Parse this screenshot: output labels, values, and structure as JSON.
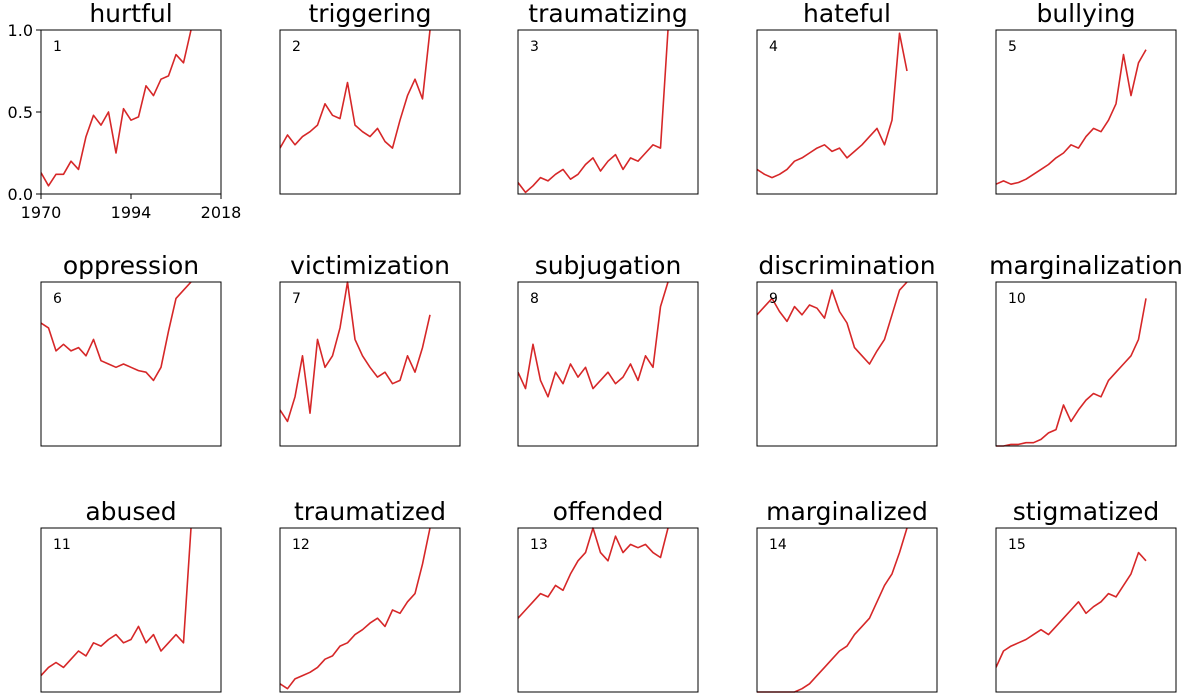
{
  "x_tick_labels": [
    "1970",
    "1994",
    "2018"
  ],
  "y_tick_labels": [
    "0.0",
    "0.5",
    "1.0"
  ],
  "line_color": "#d62728",
  "chart_data": {
    "type": "line",
    "xlabel": "",
    "ylabel": "",
    "xlim": [
      1970,
      2018
    ],
    "ylim": [
      0,
      1
    ],
    "x_ticks": [
      1970,
      1994,
      2018
    ],
    "y_ticks": [
      0.0,
      0.5,
      1.0
    ],
    "x_start": 1970,
    "x_step": 2,
    "grid": false,
    "panels": [
      {
        "num": "1",
        "title": "hurtful",
        "values": [
          0.13,
          0.05,
          0.12,
          0.12,
          0.2,
          0.15,
          0.35,
          0.48,
          0.42,
          0.5,
          0.25,
          0.52,
          0.45,
          0.47,
          0.66,
          0.6,
          0.7,
          0.72,
          0.85,
          0.8,
          1.0
        ]
      },
      {
        "num": "2",
        "title": "triggering",
        "values": [
          0.28,
          0.36,
          0.3,
          0.35,
          0.38,
          0.42,
          0.55,
          0.48,
          0.46,
          0.68,
          0.42,
          0.38,
          0.35,
          0.4,
          0.32,
          0.28,
          0.45,
          0.6,
          0.7,
          0.58,
          1.0
        ]
      },
      {
        "num": "3",
        "title": "traumatizing",
        "values": [
          0.07,
          0.01,
          0.05,
          0.1,
          0.08,
          0.12,
          0.15,
          0.09,
          0.12,
          0.18,
          0.22,
          0.14,
          0.2,
          0.24,
          0.15,
          0.22,
          0.2,
          0.25,
          0.3,
          0.28,
          1.0
        ]
      },
      {
        "num": "4",
        "title": "hateful",
        "values": [
          0.15,
          0.12,
          0.1,
          0.12,
          0.15,
          0.2,
          0.22,
          0.25,
          0.28,
          0.3,
          0.26,
          0.28,
          0.22,
          0.26,
          0.3,
          0.35,
          0.4,
          0.3,
          0.45,
          0.98,
          0.75
        ]
      },
      {
        "num": "5",
        "title": "bullying",
        "values": [
          0.06,
          0.08,
          0.06,
          0.07,
          0.09,
          0.12,
          0.15,
          0.18,
          0.22,
          0.25,
          0.3,
          0.28,
          0.35,
          0.4,
          0.38,
          0.45,
          0.55,
          0.85,
          0.6,
          0.8,
          0.88
        ]
      },
      {
        "num": "6",
        "title": "oppression",
        "values": [
          0.75,
          0.72,
          0.58,
          0.62,
          0.58,
          0.6,
          0.55,
          0.65,
          0.52,
          0.5,
          0.48,
          0.5,
          0.48,
          0.46,
          0.45,
          0.4,
          0.48,
          0.7,
          0.9,
          0.95,
          1.0
        ]
      },
      {
        "num": "7",
        "title": "victimization",
        "values": [
          0.22,
          0.15,
          0.3,
          0.55,
          0.2,
          0.65,
          0.48,
          0.55,
          0.72,
          1.0,
          0.65,
          0.55,
          0.48,
          0.42,
          0.45,
          0.38,
          0.4,
          0.55,
          0.45,
          0.6,
          0.8
        ]
      },
      {
        "num": "8",
        "title": "subjugation",
        "values": [
          0.45,
          0.35,
          0.62,
          0.4,
          0.3,
          0.45,
          0.38,
          0.5,
          0.42,
          0.48,
          0.35,
          0.4,
          0.45,
          0.38,
          0.42,
          0.5,
          0.4,
          0.55,
          0.48,
          0.85,
          1.0
        ]
      },
      {
        "num": "9",
        "title": "discrimination",
        "values": [
          0.8,
          0.85,
          0.9,
          0.82,
          0.76,
          0.85,
          0.8,
          0.86,
          0.84,
          0.78,
          0.95,
          0.82,
          0.75,
          0.6,
          0.55,
          0.5,
          0.58,
          0.65,
          0.8,
          0.95,
          1.0
        ]
      },
      {
        "num": "10",
        "title": "marginalization",
        "values": [
          0.0,
          0.0,
          0.01,
          0.01,
          0.02,
          0.02,
          0.04,
          0.08,
          0.1,
          0.25,
          0.15,
          0.22,
          0.28,
          0.32,
          0.3,
          0.4,
          0.45,
          0.5,
          0.55,
          0.65,
          0.9
        ]
      },
      {
        "num": "11",
        "title": "abused",
        "values": [
          0.1,
          0.15,
          0.18,
          0.15,
          0.2,
          0.25,
          0.22,
          0.3,
          0.28,
          0.32,
          0.35,
          0.3,
          0.32,
          0.4,
          0.3,
          0.35,
          0.25,
          0.3,
          0.35,
          0.3,
          1.0
        ]
      },
      {
        "num": "12",
        "title": "traumatized",
        "values": [
          0.05,
          0.02,
          0.08,
          0.1,
          0.12,
          0.15,
          0.2,
          0.22,
          0.28,
          0.3,
          0.35,
          0.38,
          0.42,
          0.45,
          0.4,
          0.5,
          0.48,
          0.55,
          0.6,
          0.78,
          1.0
        ]
      },
      {
        "num": "13",
        "title": "offended",
        "values": [
          0.45,
          0.5,
          0.55,
          0.6,
          0.58,
          0.65,
          0.62,
          0.72,
          0.8,
          0.85,
          1.0,
          0.85,
          0.8,
          0.95,
          0.85,
          0.9,
          0.88,
          0.9,
          0.85,
          0.82,
          1.0
        ]
      },
      {
        "num": "14",
        "title": "marginalized",
        "values": [
          0.0,
          0.0,
          0.0,
          0.0,
          0.0,
          0.0,
          0.02,
          0.05,
          0.1,
          0.15,
          0.2,
          0.25,
          0.28,
          0.35,
          0.4,
          0.45,
          0.55,
          0.65,
          0.72,
          0.85,
          1.0
        ]
      },
      {
        "num": "15",
        "title": "stigmatized",
        "values": [
          0.15,
          0.25,
          0.28,
          0.3,
          0.32,
          0.35,
          0.38,
          0.35,
          0.4,
          0.45,
          0.5,
          0.55,
          0.48,
          0.52,
          0.55,
          0.6,
          0.58,
          0.65,
          0.72,
          0.85,
          0.8
        ]
      }
    ]
  }
}
